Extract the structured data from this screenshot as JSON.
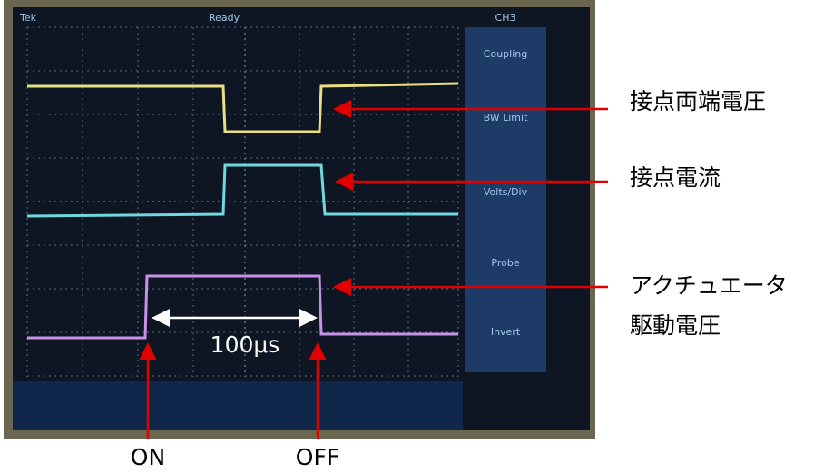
{
  "screen": {
    "texts": {
      "brand": "Tek",
      "status": "Ready",
      "channel": "CH3",
      "menu": [
        "Coupling",
        "BW Limit",
        "Volts/Div",
        "Probe",
        "Invert"
      ]
    }
  },
  "annotations": {
    "contact_voltage": "接点両端電圧",
    "contact_current": "接点電流",
    "actuator_voltage": [
      "アクチュエータ",
      "駆動電圧"
    ],
    "time_span": "100μs",
    "on": "ON",
    "off": "OFF"
  }
}
